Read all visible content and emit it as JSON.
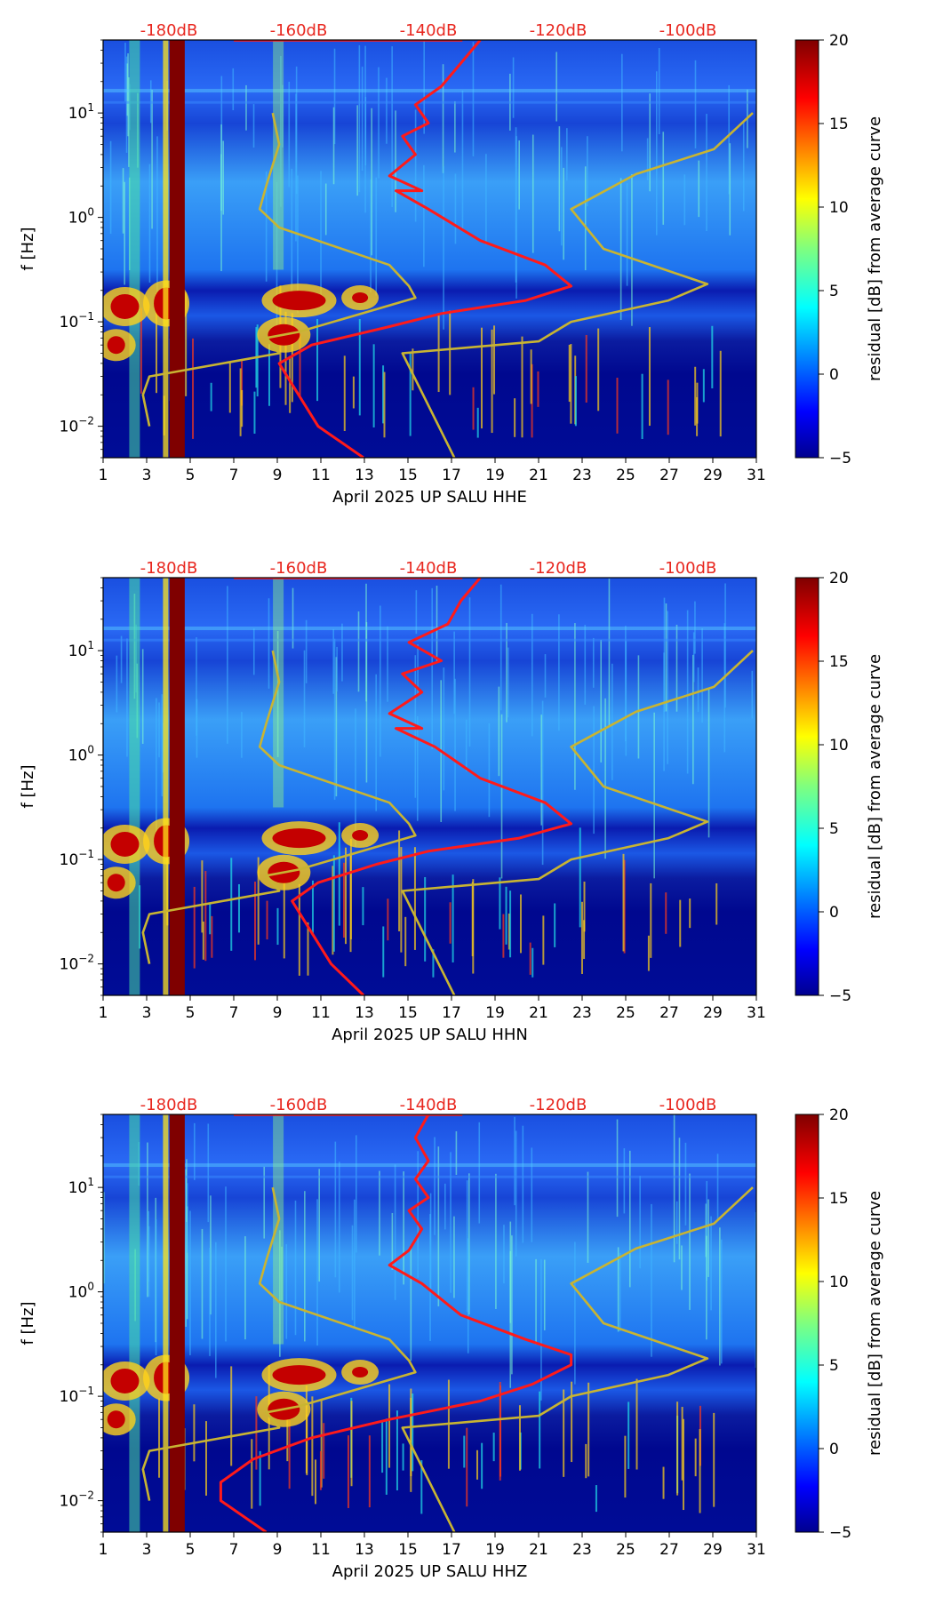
{
  "chart_data": [
    {
      "type": "heatmap",
      "title": "",
      "xlabel": "April 2025 UP SALU  HHE",
      "ylabel": "f [Hz]",
      "x_ticks": [
        "1",
        "3",
        "5",
        "7",
        "9",
        "11",
        "13",
        "15",
        "17",
        "19",
        "21",
        "23",
        "25",
        "27",
        "29",
        "31"
      ],
      "xlim": [
        1,
        31
      ],
      "y_ticks": [
        {
          "base": "10",
          "exp": "−2"
        },
        {
          "base": "10",
          "exp": "−1"
        },
        {
          "base": "10",
          "exp": "0"
        },
        {
          "base": "10",
          "exp": "1"
        }
      ],
      "ylim_hz": [
        0.005,
        50
      ],
      "top_axis_labels": [
        "-180dB",
        "-160dB",
        "-140dB",
        "-120dB",
        "-100dB"
      ],
      "colorbar": {
        "label": "residual [dB] from average curve",
        "ticks": [
          "−5",
          "0",
          "5",
          "10",
          "15",
          "20"
        ],
        "range": [
          -5,
          20
        ]
      },
      "series": [
        {
          "name": "average PSD (red)",
          "color": "#ff1a1a",
          "db_vs_hz": [
            [
              -150,
              0.005
            ],
            [
              -157,
              0.01
            ],
            [
              -160,
              0.02
            ],
            [
              -163,
              0.04
            ],
            [
              -158,
              0.06
            ],
            [
              -146,
              0.09
            ],
            [
              -138,
              0.12
            ],
            [
              -125,
              0.16
            ],
            [
              -118,
              0.22
            ],
            [
              -122,
              0.35
            ],
            [
              -132,
              0.6
            ],
            [
              -140,
              1.2
            ],
            [
              -145,
              1.8
            ],
            [
              -141,
              1.8
            ],
            [
              -146,
              2.5
            ],
            [
              -142,
              4
            ],
            [
              -144,
              6
            ],
            [
              -140,
              8
            ],
            [
              -142,
              12
            ],
            [
              -138,
              18
            ],
            [
              -135,
              30
            ],
            [
              -132,
              50
            ]
          ]
        },
        {
          "name": "NLNM (yellow)",
          "color": "#c8b432",
          "db_vs_hz": [
            [
              -183,
              0.01
            ],
            [
              -184,
              0.02
            ],
            [
              -183,
              0.03
            ],
            [
              -163,
              0.05
            ],
            [
              -165,
              0.07
            ],
            [
              -160,
              0.08
            ],
            [
              -142,
              0.17
            ],
            [
              -143,
              0.22
            ],
            [
              -146,
              0.35
            ],
            [
              -163,
              0.8
            ],
            [
              -166,
              1.2
            ],
            [
              -165,
              2
            ],
            [
              -163,
              5
            ],
            [
              -164,
              10
            ]
          ]
        },
        {
          "name": "NHNM (yellow)",
          "color": "#c8b432",
          "db_vs_hz": [
            [
              -136,
              0.005
            ],
            [
              -144,
              0.05
            ],
            [
              -123,
              0.065
            ],
            [
              -118,
              0.1
            ],
            [
              -103,
              0.16
            ],
            [
              -97,
              0.23
            ],
            [
              -113,
              0.5
            ],
            [
              -118,
              1.2
            ],
            [
              -108,
              2.6
            ],
            [
              -96,
              4.5
            ],
            [
              -90,
              10
            ]
          ]
        }
      ]
    },
    {
      "type": "heatmap",
      "title": "",
      "xlabel": "April 2025 UP SALU  HHN",
      "ylabel": "f [Hz]",
      "x_ticks": [
        "1",
        "3",
        "5",
        "7",
        "9",
        "11",
        "13",
        "15",
        "17",
        "19",
        "21",
        "23",
        "25",
        "27",
        "29",
        "31"
      ],
      "xlim": [
        1,
        31
      ],
      "y_ticks": [
        {
          "base": "10",
          "exp": "−2"
        },
        {
          "base": "10",
          "exp": "−1"
        },
        {
          "base": "10",
          "exp": "0"
        },
        {
          "base": "10",
          "exp": "1"
        }
      ],
      "ylim_hz": [
        0.005,
        50
      ],
      "top_axis_labels": [
        "-180dB",
        "-160dB",
        "-140dB",
        "-120dB",
        "-100dB"
      ],
      "colorbar": {
        "label": "residual [dB] from average curve",
        "ticks": [
          "−5",
          "0",
          "5",
          "10",
          "15",
          "20"
        ],
        "range": [
          -5,
          20
        ]
      },
      "series": [
        {
          "name": "average PSD (red)",
          "color": "#ff1a1a",
          "db_vs_hz": [
            [
              -150,
              0.005
            ],
            [
              -155,
              0.01
            ],
            [
              -158,
              0.02
            ],
            [
              -161,
              0.04
            ],
            [
              -157,
              0.06
            ],
            [
              -148,
              0.09
            ],
            [
              -140,
              0.12
            ],
            [
              -126,
              0.16
            ],
            [
              -118,
              0.22
            ],
            [
              -122,
              0.35
            ],
            [
              -132,
              0.6
            ],
            [
              -139,
              1.2
            ],
            [
              -145,
              1.8
            ],
            [
              -141,
              1.8
            ],
            [
              -146,
              2.5
            ],
            [
              -141,
              4
            ],
            [
              -144,
              6
            ],
            [
              -138,
              8
            ],
            [
              -143,
              12
            ],
            [
              -137,
              18
            ],
            [
              -135,
              30
            ],
            [
              -132,
              50
            ]
          ]
        },
        {
          "name": "NLNM (yellow)",
          "color": "#c8b432",
          "db_vs_hz": [
            [
              -183,
              0.01
            ],
            [
              -184,
              0.02
            ],
            [
              -183,
              0.03
            ],
            [
              -163,
              0.05
            ],
            [
              -165,
              0.07
            ],
            [
              -160,
              0.08
            ],
            [
              -142,
              0.17
            ],
            [
              -143,
              0.22
            ],
            [
              -146,
              0.35
            ],
            [
              -163,
              0.8
            ],
            [
              -166,
              1.2
            ],
            [
              -165,
              2
            ],
            [
              -163,
              5
            ],
            [
              -164,
              10
            ]
          ]
        },
        {
          "name": "NHNM (yellow)",
          "color": "#c8b432",
          "db_vs_hz": [
            [
              -136,
              0.005
            ],
            [
              -144,
              0.05
            ],
            [
              -123,
              0.065
            ],
            [
              -118,
              0.1
            ],
            [
              -103,
              0.16
            ],
            [
              -97,
              0.23
            ],
            [
              -113,
              0.5
            ],
            [
              -118,
              1.2
            ],
            [
              -108,
              2.6
            ],
            [
              -96,
              4.5
            ],
            [
              -90,
              10
            ]
          ]
        }
      ]
    },
    {
      "type": "heatmap",
      "title": "",
      "xlabel": "April 2025 UP SALU  HHZ",
      "ylabel": "f [Hz]",
      "x_ticks": [
        "1",
        "3",
        "5",
        "7",
        "9",
        "11",
        "13",
        "15",
        "17",
        "19",
        "21",
        "23",
        "25",
        "27",
        "29",
        "31"
      ],
      "xlim": [
        1,
        31
      ],
      "y_ticks": [
        {
          "base": "10",
          "exp": "−2"
        },
        {
          "base": "10",
          "exp": "−1"
        },
        {
          "base": "10",
          "exp": "0"
        },
        {
          "base": "10",
          "exp": "1"
        }
      ],
      "ylim_hz": [
        0.005,
        50
      ],
      "top_axis_labels": [
        "-180dB",
        "-160dB",
        "-140dB",
        "-120dB",
        "-100dB"
      ],
      "colorbar": {
        "label": "residual [dB] from average curve",
        "ticks": [
          "−5",
          "0",
          "5",
          "10",
          "15",
          "20"
        ],
        "range": [
          -5,
          20
        ]
      },
      "series": [
        {
          "name": "average PSD (red)",
          "color": "#ff1a1a",
          "db_vs_hz": [
            [
              -165,
              0.005
            ],
            [
              -172,
              0.01
            ],
            [
              -172,
              0.015
            ],
            [
              -167,
              0.025
            ],
            [
              -158,
              0.04
            ],
            [
              -146,
              0.06
            ],
            [
              -132,
              0.09
            ],
            [
              -124,
              0.13
            ],
            [
              -118,
              0.2
            ],
            [
              -118,
              0.25
            ],
            [
              -125,
              0.35
            ],
            [
              -135,
              0.6
            ],
            [
              -141,
              1.2
            ],
            [
              -146,
              1.8
            ],
            [
              -143,
              2.5
            ],
            [
              -141,
              4
            ],
            [
              -143,
              6
            ],
            [
              -140,
              8
            ],
            [
              -142,
              12
            ],
            [
              -140,
              18
            ],
            [
              -142,
              30
            ],
            [
              -140,
              50
            ]
          ]
        },
        {
          "name": "NLNM (yellow)",
          "color": "#c8b432",
          "db_vs_hz": [
            [
              -183,
              0.01
            ],
            [
              -184,
              0.02
            ],
            [
              -183,
              0.03
            ],
            [
              -163,
              0.05
            ],
            [
              -165,
              0.07
            ],
            [
              -160,
              0.08
            ],
            [
              -142,
              0.17
            ],
            [
              -143,
              0.22
            ],
            [
              -146,
              0.35
            ],
            [
              -163,
              0.8
            ],
            [
              -166,
              1.2
            ],
            [
              -165,
              2
            ],
            [
              -163,
              5
            ],
            [
              -164,
              10
            ]
          ]
        },
        {
          "name": "NHNM (yellow)",
          "color": "#c8b432",
          "db_vs_hz": [
            [
              -136,
              0.005
            ],
            [
              -144,
              0.05
            ],
            [
              -123,
              0.065
            ],
            [
              -118,
              0.1
            ],
            [
              -103,
              0.16
            ],
            [
              -97,
              0.23
            ],
            [
              -113,
              0.5
            ],
            [
              -118,
              1.2
            ],
            [
              -108,
              2.6
            ],
            [
              -96,
              4.5
            ],
            [
              -90,
              10
            ]
          ]
        }
      ]
    }
  ],
  "colors": {
    "red_curve": "#ff1a1a",
    "yellow_curve": "#c8b432",
    "db_label": "#e8271f",
    "low": "#00008b",
    "high": "#7f0000"
  }
}
